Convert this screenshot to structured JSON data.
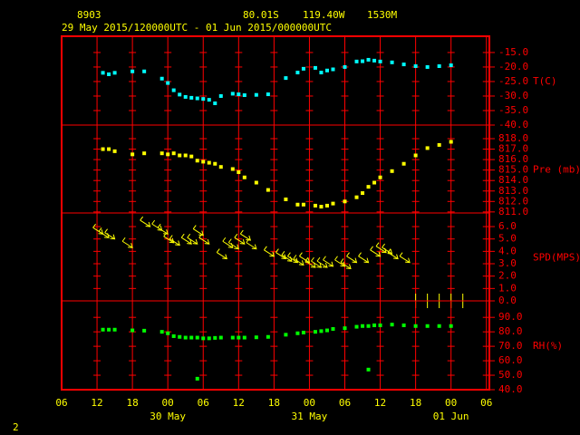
{
  "header": {
    "station": "8903",
    "latitude": "80.01S",
    "longitude": "119.40W",
    "elevation": "1530M",
    "period": "29 May 2015/120000UTC - 01 Jun 2015/000000UTC"
  },
  "page_number": "2",
  "x_axis": {
    "xlim": [
      6,
      78.5
    ],
    "xticks": [
      {
        "value": 6,
        "label": "06"
      },
      12,
      18,
      {
        "value": 24,
        "label": "00"
      },
      {
        "value": 30,
        "label": "06"
      },
      {
        "value": 36,
        "label": "12"
      },
      {
        "value": 42,
        "label": "18"
      },
      {
        "value": 48,
        "label": "00"
      },
      {
        "value": 54,
        "label": "06"
      },
      {
        "value": 60,
        "label": "12"
      },
      {
        "value": 66,
        "label": "18"
      },
      {
        "value": 72,
        "label": "00"
      },
      {
        "value": 78,
        "label": "06"
      }
    ],
    "date_labels": [
      {
        "value": 24,
        "label": "30 May"
      },
      {
        "value": 48,
        "label": "31 May"
      },
      {
        "value": 72,
        "label": "01 Jun"
      }
    ]
  },
  "chart_data": [
    {
      "type": "scatter",
      "ylabel": "T(C)",
      "color": "#00ffff",
      "x": [
        13,
        14,
        15,
        18,
        20,
        23,
        24,
        25,
        26,
        27,
        28,
        29,
        30,
        31,
        32,
        33,
        35,
        36,
        37,
        39,
        41,
        44,
        46,
        47,
        49,
        50,
        51,
        52,
        54,
        56,
        57,
        58,
        59,
        60,
        62,
        64,
        66,
        68,
        70,
        72
      ],
      "values": [
        -22.0,
        -22.5,
        -22.0,
        -21.5,
        -21.5,
        -24.0,
        -25.5,
        -28.0,
        -29.5,
        -30.3,
        -30.6,
        -30.8,
        -31.0,
        -31.3,
        -32.5,
        -30.0,
        -29.2,
        -29.4,
        -29.7,
        -29.6,
        -29.4,
        -23.8,
        -21.9,
        -20.6,
        -20.3,
        -21.9,
        -21.2,
        -20.8,
        -20.0,
        -18.1,
        -18.0,
        -17.5,
        -17.8,
        -18.1,
        -18.4,
        -19.1,
        -19.7,
        -20.0,
        -19.7,
        -19.4
      ],
      "ylim": [
        -40,
        -9.4
      ],
      "yticks": [
        {
          "value": -15,
          "label": "-15.0"
        },
        {
          "value": -20,
          "label": "-20.0"
        },
        {
          "value": -25,
          "label": "-25.0"
        },
        {
          "value": -30,
          "label": "-30.0"
        },
        {
          "value": -35,
          "label": "-35.0"
        },
        {
          "value": -40,
          "label": "-40.0"
        }
      ]
    },
    {
      "type": "scatter",
      "ylabel": "Pre (mb)",
      "color": "#ffff00",
      "x": [
        13,
        14,
        15,
        18,
        20,
        23,
        24,
        25,
        26,
        27,
        28,
        29,
        30,
        31,
        32,
        33,
        35,
        36,
        37,
        39,
        41,
        44,
        46,
        47,
        49,
        50,
        51,
        52,
        54,
        56,
        57,
        58,
        59,
        60,
        62,
        64,
        66,
        68,
        70,
        72
      ],
      "values": [
        817.0,
        817.0,
        816.8,
        816.5,
        816.6,
        816.6,
        816.5,
        816.6,
        816.4,
        816.4,
        816.3,
        815.9,
        815.8,
        815.7,
        815.6,
        815.3,
        815.1,
        814.8,
        814.3,
        813.8,
        813.1,
        812.2,
        811.7,
        811.7,
        811.6,
        811.5,
        811.6,
        811.8,
        812.0,
        812.4,
        812.8,
        813.4,
        813.8,
        814.3,
        814.9,
        815.6,
        816.4,
        817.1,
        817.4,
        817.7
      ],
      "ylim": [
        810.9,
        819.3
      ],
      "yticks": [
        {
          "value": 818,
          "label": "818.0"
        },
        {
          "value": 817,
          "label": "817.0"
        },
        {
          "value": 816,
          "label": "816.0"
        },
        {
          "value": 815,
          "label": "815.0"
        },
        {
          "value": 814,
          "label": "814.0"
        },
        {
          "value": 813,
          "label": "813.0"
        },
        {
          "value": 812,
          "label": "812.0"
        },
        {
          "value": 811,
          "label": "811.0"
        }
      ]
    },
    {
      "type": "vector",
      "ylabel": "SPD(MPS)",
      "color": "#ffff00",
      "x": [
        13,
        14,
        15,
        18,
        21,
        23,
        24,
        25,
        26,
        28,
        29,
        30,
        31,
        34,
        35,
        36,
        37,
        38,
        39,
        42,
        44,
        45,
        46,
        47,
        48,
        49,
        50,
        51,
        52,
        54,
        55,
        56,
        58,
        60,
        61,
        62,
        63,
        65,
        66,
        68,
        70,
        72,
        74
      ],
      "values": [
        5.4,
        5.1,
        5.0,
        4.3,
        6.0,
        5.7,
        5.4,
        4.7,
        4.5,
        4.6,
        4.6,
        5.3,
        4.6,
        3.4,
        4.3,
        4.2,
        4.6,
        4.9,
        4.2,
        3.6,
        3.4,
        3.2,
        3.1,
        2.9,
        3.1,
        2.7,
        2.7,
        2.7,
        2.8,
        2.8,
        2.6,
        3.1,
        3.1,
        3.6,
        3.9,
        3.8,
        3.4,
        3.1,
        0,
        0,
        0,
        0,
        0
      ],
      "ylim": [
        0,
        7.1
      ],
      "yticks": [
        {
          "value": 6,
          "label": "6.0"
        },
        {
          "value": 5,
          "label": "5.0"
        },
        {
          "value": 4,
          "label": "4.0"
        },
        {
          "value": 3,
          "label": "3.0"
        },
        {
          "value": 2,
          "label": "2.0"
        },
        {
          "value": 1,
          "label": "1.0"
        },
        {
          "value": 0,
          "label": "0.0"
        }
      ]
    },
    {
      "type": "scatter",
      "ylabel": "RH(%)",
      "color": "#00ff00",
      "x": [
        13,
        14,
        15,
        18,
        20,
        23,
        24,
        25,
        26,
        27,
        28,
        29,
        30,
        31,
        32,
        33,
        35,
        36,
        37,
        39,
        41,
        44,
        46,
        47,
        49,
        50,
        51,
        52,
        54,
        56,
        57,
        58,
        59,
        60,
        62,
        64,
        66,
        68,
        70,
        72,
        29,
        58
      ],
      "values": [
        81.5,
        81.5,
        81.5,
        81,
        80.8,
        80,
        79,
        77,
        76.5,
        76,
        76,
        76,
        75.5,
        75.5,
        75.8,
        76,
        76,
        76,
        76,
        76.2,
        76.5,
        78,
        79,
        79.5,
        80,
        80.5,
        81,
        82,
        82.5,
        83.5,
        84,
        84,
        84.5,
        84.5,
        85,
        84.5,
        84,
        84,
        84,
        84,
        47.6,
        53.9
      ],
      "ylim": [
        40,
        101.4
      ],
      "yticks": [
        {
          "value": 90,
          "label": "90.0"
        },
        {
          "value": 80,
          "label": "80.0"
        },
        {
          "value": 70,
          "label": "70.0"
        },
        {
          "value": 60,
          "label": "60.0"
        },
        {
          "value": 50,
          "label": "50.0"
        },
        {
          "value": 40,
          "label": "40.0"
        }
      ]
    }
  ]
}
